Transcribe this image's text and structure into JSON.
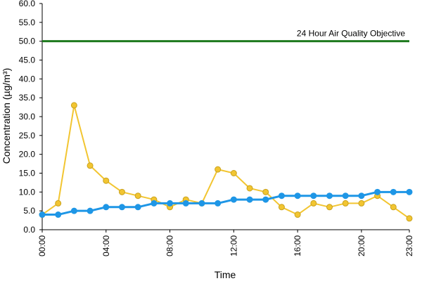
{
  "chart_data": {
    "type": "line",
    "xlabel": "Time",
    "ylabel": "Concentration (µg/m³)",
    "x": [
      "00:00",
      "01:00",
      "02:00",
      "03:00",
      "04:00",
      "05:00",
      "06:00",
      "07:00",
      "08:00",
      "09:00",
      "10:00",
      "11:00",
      "12:00",
      "13:00",
      "14:00",
      "15:00",
      "16:00",
      "17:00",
      "18:00",
      "19:00",
      "20:00",
      "21:00",
      "22:00",
      "23:00"
    ],
    "x_tick_labels": [
      "00:00",
      "04:00",
      "08:00",
      "12:00",
      "16:00",
      "20:00",
      "23:00"
    ],
    "x_tick_indices": [
      0,
      4,
      8,
      12,
      16,
      20,
      23
    ],
    "ylim": [
      0,
      60
    ],
    "y_tick_labels": [
      "0.0",
      "5.0",
      "10.0",
      "15.0",
      "20.0",
      "25.0",
      "30.0",
      "35.0",
      "40.0",
      "45.0",
      "50.0",
      "55.0",
      "60.0"
    ],
    "grid": false,
    "series": [
      {
        "color": "#F2C531",
        "marker_stroke": "#C9A21E",
        "values": [
          4,
          7,
          33,
          17,
          13,
          10,
          9,
          8,
          6,
          8,
          7,
          16,
          15,
          11,
          10,
          6,
          4,
          7,
          6,
          7,
          7,
          9,
          6,
          3
        ]
      },
      {
        "color": "#1E96E6",
        "marker_stroke": "#1E96E6",
        "values": [
          4,
          4,
          5,
          5,
          6,
          6,
          6,
          7,
          7,
          7,
          7,
          7,
          8,
          8,
          8,
          9,
          9,
          9,
          9,
          9,
          9,
          10,
          10,
          10
        ]
      }
    ],
    "reference_line": {
      "value": 50,
      "label": "24 Hour Air Quality Objective",
      "color": "#1E7A1E"
    }
  }
}
